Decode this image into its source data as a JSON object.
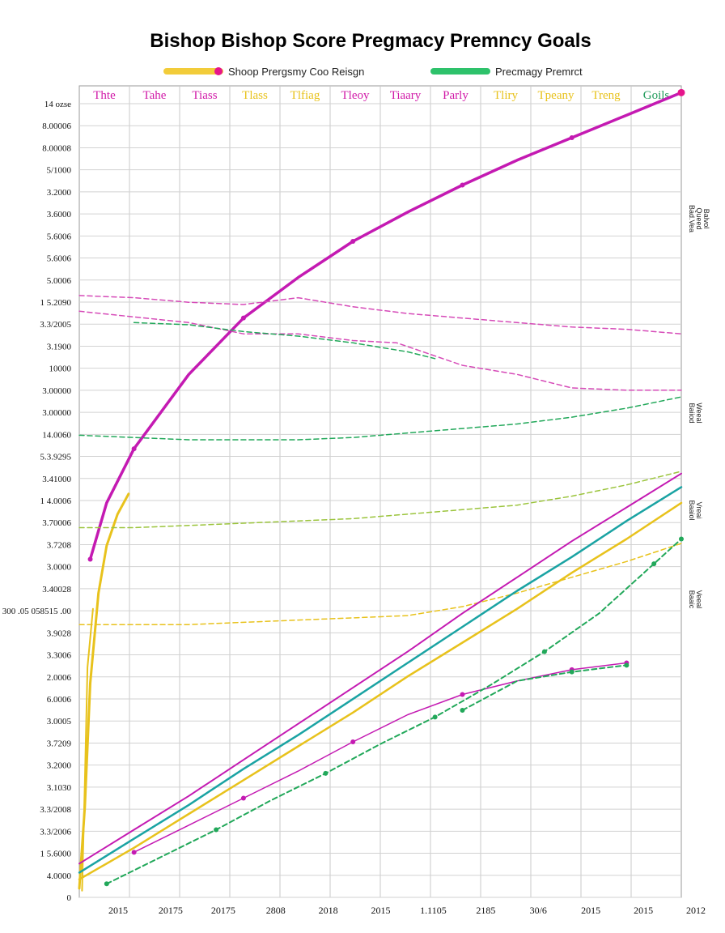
{
  "chart_data": {
    "type": "line",
    "title": "Bishop Bishop Score Pregmacy Premncy Goals",
    "legend": {
      "placement": "top-center",
      "entries": [
        {
          "label": "Shoop Prergsmy Coo Reisgn",
          "color": "#f2cc3a",
          "marker_color": "#e6158c"
        },
        {
          "label": "Precmagy Premrct",
          "color": "#2ec26b"
        }
      ]
    },
    "column_headers": [
      {
        "label": "Thte",
        "color": "#d11aa8"
      },
      {
        "label": "Tahe",
        "color": "#d11aa8"
      },
      {
        "label": "Tiass",
        "color": "#d11aa8"
      },
      {
        "label": "Tlass",
        "color": "#e8c21c"
      },
      {
        "label": "Tlfiag",
        "color": "#e8c21c"
      },
      {
        "label": "Tleoy",
        "color": "#d11aa8"
      },
      {
        "label": "Tiaary",
        "color": "#d11aa8"
      },
      {
        "label": "Parly",
        "color": "#d11aa8"
      },
      {
        "label": "Tliry",
        "color": "#e8c21c"
      },
      {
        "label": "Tpeany",
        "color": "#e8c21c"
      },
      {
        "label": "Treng",
        "color": "#e8c21c"
      },
      {
        "label": "Goils",
        "color": "#1f9a5a"
      }
    ],
    "y_tick_labels": [
      "14 ozse",
      "8.00006",
      "8.00008",
      "5/1000",
      "3.2000",
      "3.6000",
      "5.6006",
      "5.6006",
      "5.0006",
      "1 5.2090",
      "3.3/2005",
      "3.1900",
      "10000",
      "3.00000",
      "3.00000",
      "14.0060",
      "5.3.9295",
      "3.41000",
      "1 4.0006",
      "3.70006",
      "3.7208",
      "3.0000",
      "3.40028",
      "300 .05 058515 .00",
      "3.9028",
      "3.3006",
      "2.0006",
      "6.0006",
      "3.0005",
      "3.7209",
      "3.2000",
      "3.1030",
      "3.3/2008",
      "3.3/2006",
      "1 5.6000",
      "4.0000",
      "0"
    ],
    "x_tick_labels": [
      "2015",
      "20175",
      "20175",
      "2808",
      "2018",
      "2015",
      "1.1105",
      "2185",
      "30/6",
      "2015",
      "2015",
      "2012"
    ],
    "xlim": [
      0,
      11
    ],
    "ylim": [
      0,
      36
    ],
    "grid": true,
    "series": [
      {
        "color": "#c41ab2",
        "style": "solid",
        "width": 3.5,
        "marker": "circle",
        "x": [
          0.2,
          0.5,
          1.0,
          2.0,
          3.0,
          4.0,
          5.0,
          6.0,
          7.0,
          8.0,
          9.0,
          10.0,
          11.0
        ],
        "y": [
          15.0,
          17.5,
          19.9,
          23.2,
          25.7,
          27.5,
          29.1,
          30.4,
          31.6,
          32.7,
          33.7,
          34.7,
          35.7
        ]
      },
      {
        "color": "#e8c21c",
        "style": "solid",
        "width": 3,
        "x": [
          0.0,
          0.1,
          0.2,
          0.35,
          0.5,
          0.7,
          0.9
        ],
        "y": [
          0.4,
          4.0,
          9.5,
          13.5,
          15.6,
          17.0,
          17.9
        ]
      },
      {
        "color": "#e8c21c",
        "style": "solid",
        "width": 2,
        "x": [
          0.05,
          0.1,
          0.15,
          0.25
        ],
        "y": [
          0.3,
          5.0,
          10.2,
          12.8
        ]
      },
      {
        "color": "#d64bb8",
        "style": "dashed",
        "width": 1.5,
        "x": [
          0.0,
          1.0,
          2.0,
          3.0,
          4.0,
          5.0,
          6.0,
          7.0,
          8.0,
          9.0,
          10.0,
          11.0
        ],
        "y": [
          26.7,
          26.6,
          26.4,
          26.3,
          26.6,
          26.2,
          25.9,
          25.7,
          25.5,
          25.3,
          25.2,
          25.0
        ],
        "x2": [
          0.0,
          1.0,
          2.0,
          3.0,
          4.0,
          5.0,
          6.0,
          7.0,
          8.0,
          9.0,
          10.0,
          11.0
        ]
      },
      {
        "color": "#d64bb8",
        "style": "dashed",
        "width": 1.5,
        "x": [
          0.0,
          2.0,
          3.0,
          4.0,
          5.0,
          5.8,
          7.0,
          8.0,
          9.0,
          10.0,
          11.0
        ],
        "y": [
          26.0,
          25.5,
          25.0,
          25.0,
          24.7,
          24.6,
          23.6,
          23.2,
          22.6,
          22.5,
          22.5
        ]
      },
      {
        "color": "#22a85a",
        "style": "dashed",
        "width": 1.5,
        "x": [
          1.0,
          2.0,
          3.0,
          4.0,
          5.0,
          6.0,
          6.5
        ],
        "y": [
          25.5,
          25.4,
          25.1,
          24.9,
          24.6,
          24.2,
          23.9
        ]
      },
      {
        "color": "#22a85a",
        "style": "dashed",
        "width": 1.5,
        "x": [
          0.0,
          1.0,
          2.0,
          3.0,
          4.0,
          5.0,
          6.0,
          7.0,
          8.0,
          9.0,
          10.0,
          11.0
        ],
        "y": [
          20.5,
          20.4,
          20.3,
          20.3,
          20.3,
          20.4,
          20.6,
          20.8,
          21.0,
          21.3,
          21.7,
          22.2
        ]
      },
      {
        "color": "#9bc43c",
        "style": "dashed",
        "width": 1.5,
        "x": [
          0.0,
          1.0,
          2.0,
          3.0,
          4.0,
          5.0,
          6.0,
          7.0,
          8.0,
          9.0,
          10.0,
          11.0
        ],
        "y": [
          16.4,
          16.4,
          16.5,
          16.6,
          16.7,
          16.8,
          17.0,
          17.2,
          17.4,
          17.8,
          18.3,
          18.9
        ]
      },
      {
        "color": "#e8c21c",
        "style": "dashed",
        "width": 1.5,
        "x": [
          0.0,
          1.0,
          2.0,
          3.0,
          4.0,
          5.0,
          6.0,
          7.0,
          8.0,
          9.0,
          10.0,
          11.0
        ],
        "y": [
          12.1,
          12.1,
          12.1,
          12.2,
          12.3,
          12.4,
          12.5,
          12.9,
          13.5,
          14.2,
          14.9,
          15.7
        ]
      },
      {
        "color": "#c41ab2",
        "style": "solid",
        "width": 2,
        "x": [
          0.0,
          1.0,
          2.0,
          3.0,
          4.0,
          5.0,
          6.0,
          7.0,
          8.0,
          9.0,
          10.0,
          11.0
        ],
        "y": [
          1.5,
          3.0,
          4.5,
          6.1,
          7.7,
          9.3,
          10.9,
          12.6,
          14.2,
          15.8,
          17.3,
          18.8
        ]
      },
      {
        "color": "#1aa3a3",
        "style": "solid",
        "width": 2.5,
        "x": [
          0.0,
          1.0,
          2.0,
          3.0,
          4.0,
          5.0,
          6.0,
          7.0,
          8.0,
          9.0,
          10.0,
          11.0
        ],
        "y": [
          1.1,
          2.6,
          4.1,
          5.7,
          7.2,
          8.8,
          10.4,
          12.0,
          13.6,
          15.1,
          16.7,
          18.2
        ]
      },
      {
        "color": "#e8c21c",
        "style": "solid",
        "width": 2.5,
        "x": [
          0.0,
          1.0,
          2.0,
          3.0,
          4.0,
          5.0,
          6.0,
          7.0,
          8.0,
          9.0,
          10.0,
          11.0
        ],
        "y": [
          0.8,
          2.2,
          3.7,
          5.2,
          6.7,
          8.2,
          9.8,
          11.3,
          12.8,
          14.4,
          15.9,
          17.5
        ]
      },
      {
        "color": "#c41ab2",
        "style": "solid",
        "width": 1.5,
        "marker": "circle",
        "x": [
          1.0,
          2.0,
          3.0,
          4.0,
          5.0,
          6.0,
          7.0,
          8.0,
          9.0,
          10.0
        ],
        "y": [
          2.0,
          3.2,
          4.4,
          5.6,
          6.9,
          8.1,
          9.0,
          9.6,
          10.1,
          10.4
        ]
      },
      {
        "color": "#22a85a",
        "style": "dashed",
        "width": 2,
        "marker": "circle",
        "x": [
          0.5,
          1.5,
          2.5,
          3.5,
          4.5,
          5.5,
          6.5,
          7.5,
          8.5,
          9.5,
          10.5,
          11.0
        ],
        "y": [
          0.6,
          1.8,
          3.0,
          4.3,
          5.5,
          6.8,
          8.0,
          9.4,
          10.9,
          12.6,
          14.8,
          15.9
        ]
      },
      {
        "color": "#22a85a",
        "style": "dashed",
        "width": 2,
        "marker": "circle",
        "x": [
          7.0,
          8.0,
          9.0,
          10.0
        ],
        "y": [
          8.3,
          9.6,
          10.0,
          10.3
        ]
      }
    ],
    "side_labels": [
      "Bad.Vea\nQueed\nBalvol",
      "Baiiod\nWeeal",
      "Baaiol\nVreai",
      "Baaic\nVeeal"
    ]
  }
}
